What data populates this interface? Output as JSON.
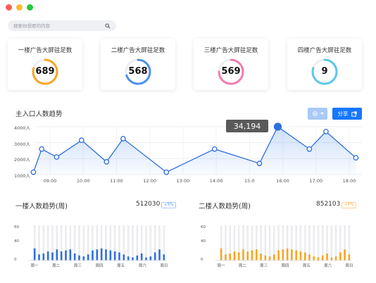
{
  "window": {
    "dots": [
      "#ff5f57",
      "#febc2e",
      "#28c840"
    ]
  },
  "search": {
    "placeholder": "搜索你想要的内容"
  },
  "cards": [
    {
      "title": "一楼广告大屏驻足数",
      "value": "689",
      "color": "#f5a623",
      "percent": 0.8
    },
    {
      "title": "二楼广告大屏驻足数",
      "value": "568",
      "color": "#4a90f0",
      "percent": 0.7
    },
    {
      "title": "三楼广告大屏驻足数",
      "value": "569",
      "color": "#f37ab0",
      "percent": 0.75
    },
    {
      "title": "四楼广告大屏驻足数",
      "value": "9",
      "color": "#5ac8e8",
      "percent": 0.8
    }
  ],
  "main_chart": {
    "title": "主入口人数趋势",
    "share_label": "分享",
    "tooltip": "34,194"
  },
  "chart_data": [
    {
      "type": "area",
      "title": "主入口人数趋势",
      "y_ticks": [
        "4000人",
        "3000人",
        "2000人",
        "1000人"
      ],
      "x_ticks": [
        "09:00",
        "10:00",
        "11:00",
        "12:00",
        "13:00",
        "14:00",
        "15:0",
        "16:00",
        "17:00",
        "18:00"
      ],
      "ylim": [
        1000,
        4000
      ],
      "points": [
        {
          "x": 8.5,
          "y": 1150
        },
        {
          "x": 8.75,
          "y": 2600
        },
        {
          "x": 9.2,
          "y": 2100
        },
        {
          "x": 9.95,
          "y": 3150
        },
        {
          "x": 10.7,
          "y": 1800
        },
        {
          "x": 11.2,
          "y": 3250
        },
        {
          "x": 12.5,
          "y": 1150
        },
        {
          "x": 13.95,
          "y": 2600
        },
        {
          "x": 15.3,
          "y": 1700
        },
        {
          "x": 15.85,
          "y": 4000
        },
        {
          "x": 16.8,
          "y": 2600
        },
        {
          "x": 17.3,
          "y": 3700
        },
        {
          "x": 18.2,
          "y": 2050
        }
      ],
      "line_color": "#2f6fdb"
    },
    {
      "type": "bar",
      "title": "一楼人数趋势(周)",
      "total": "512030",
      "badge": "+5%",
      "badge_color": "#4a90f0",
      "y_ticks": [
        "60",
        "40",
        "0"
      ],
      "x_ticks": [
        "周一",
        "周二",
        "周三",
        "周四",
        "周五",
        "周六",
        "周日"
      ],
      "ylim": [
        0,
        70
      ],
      "color": "#2f6fdb",
      "values": [
        24,
        12,
        14,
        18,
        16,
        22,
        18,
        20,
        22,
        14,
        10,
        8,
        12,
        20,
        22,
        24,
        22,
        20,
        18,
        16,
        12,
        8,
        6,
        10,
        14,
        6,
        8,
        16,
        22,
        12
      ]
    },
    {
      "type": "bar",
      "title": "二楼人数趋势(周)",
      "total": "852103",
      "badge": "+5%",
      "badge_color": "#f5a623",
      "y_ticks": [
        "60",
        "40",
        "0"
      ],
      "x_ticks": [
        "周一",
        "周二",
        "周三",
        "周四",
        "周五",
        "周六",
        "周日"
      ],
      "ylim": [
        0,
        70
      ],
      "color": "#f5a623",
      "values": [
        24,
        12,
        14,
        18,
        16,
        22,
        18,
        20,
        22,
        14,
        10,
        8,
        12,
        20,
        22,
        24,
        22,
        20,
        18,
        16,
        12,
        8,
        6,
        10,
        14,
        6,
        8,
        16,
        22,
        12
      ]
    }
  ],
  "icons": {
    "search": "search-icon",
    "gear": "gear-icon",
    "share": "share-icon",
    "caret": "caret-down-icon"
  }
}
